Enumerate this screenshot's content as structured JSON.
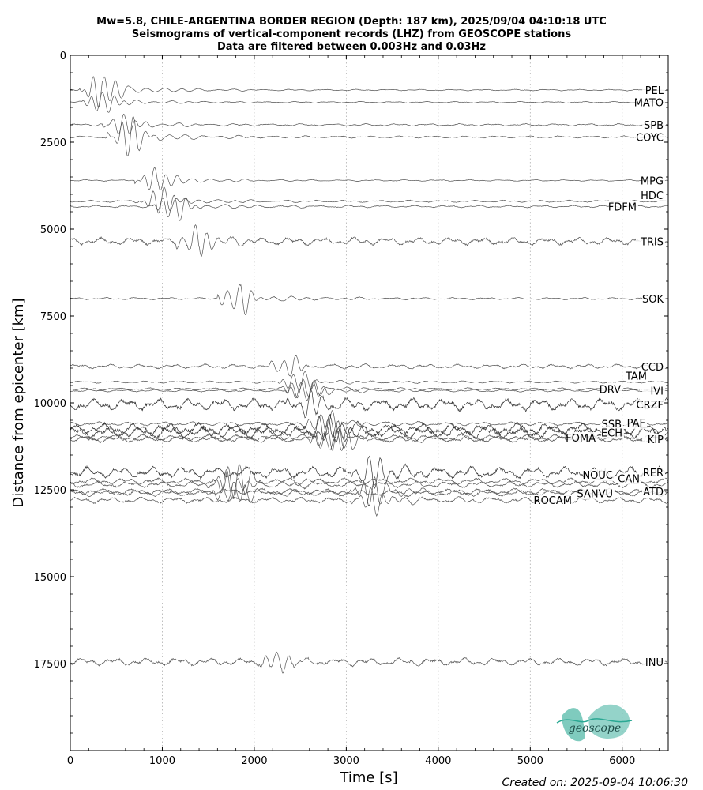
{
  "chart_data": {
    "type": "line",
    "title_lines": [
      "Mw=5.8, CHILE-ARGENTINA BORDER REGION (Depth: 187 km), 2025/09/04 04:10:18 UTC",
      "Seismograms of vertical-component records (LHZ) from GEOSCOPE stations",
      "Data are filtered between 0.003Hz and 0.03Hz"
    ],
    "xlabel": "Time [s]",
    "ylabel": "Distance from epicenter [km]",
    "xlim": [
      0,
      6500
    ],
    "ylim": [
      20000,
      0
    ],
    "xticks": [
      0,
      1000,
      2000,
      3000,
      4000,
      5000,
      6000
    ],
    "yticks": [
      0,
      2500,
      5000,
      7500,
      10000,
      12500,
      15000,
      17500
    ],
    "grid": "vertical dotted",
    "stations": [
      {
        "name": "PEL",
        "distance": 1000,
        "arrival": 350,
        "amp": 500,
        "noise": 20
      },
      {
        "name": "MATO",
        "distance": 1350,
        "arrival": 380,
        "amp": 300,
        "noise": 20
      },
      {
        "name": "SPB",
        "distance": 2000,
        "arrival": 600,
        "amp": 300,
        "noise": 30
      },
      {
        "name": "COYC",
        "distance": 2350,
        "arrival": 650,
        "amp": 500,
        "noise": 30
      },
      {
        "name": "MPG",
        "distance": 3600,
        "arrival": 950,
        "amp": 350,
        "noise": 20
      },
      {
        "name": "HDC",
        "distance": 4200,
        "arrival": 1000,
        "amp": 350,
        "noise": 30
      },
      {
        "name": "FDFM",
        "distance": 4350,
        "arrival": 1150,
        "amp": 350,
        "noise": 30
      },
      {
        "name": "TRIS",
        "distance": 5350,
        "arrival": 1400,
        "amp": 400,
        "noise": 100
      },
      {
        "name": "SOK",
        "distance": 7000,
        "arrival": 1850,
        "amp": 400,
        "noise": 30
      },
      {
        "name": "CCD",
        "distance": 8950,
        "arrival": 2400,
        "amp": 250,
        "noise": 60
      },
      {
        "name": "TAM",
        "distance": 9400,
        "arrival": 2500,
        "amp": 250,
        "noise": 30
      },
      {
        "name": "DRV",
        "distance": 9600,
        "arrival": 2550,
        "amp": 300,
        "noise": 30
      },
      {
        "name": "IVI",
        "distance": 9650,
        "arrival": 2600,
        "amp": 300,
        "noise": 30
      },
      {
        "name": "CRZF",
        "distance": 10050,
        "arrival": 2600,
        "amp": 350,
        "noise": 160
      },
      {
        "name": "SSB",
        "distance": 10600,
        "arrival": 2800,
        "amp": 350,
        "noise": 50
      },
      {
        "name": "PAF",
        "distance": 10750,
        "arrival": 2800,
        "amp": 350,
        "noise": 160
      },
      {
        "name": "ECH",
        "distance": 10850,
        "arrival": 2850,
        "amp": 350,
        "noise": 160
      },
      {
        "name": "FOMA",
        "distance": 11000,
        "arrival": 2850,
        "amp": 400,
        "noise": 80
      },
      {
        "name": "KIP",
        "distance": 11050,
        "arrival": 2900,
        "amp": 400,
        "noise": 80
      },
      {
        "name": "RER",
        "distance": 12000,
        "arrival": 3300,
        "amp": 450,
        "noise": 150
      },
      {
        "name": "NOUC",
        "distance": 12250,
        "arrival": 1800,
        "amp": 450,
        "noise": 80
      },
      {
        "name": "CAN",
        "distance": 12350,
        "arrival": 1750,
        "amp": 400,
        "noise": 80
      },
      {
        "name": "ATD",
        "distance": 12550,
        "arrival": 3300,
        "amp": 400,
        "noise": 80
      },
      {
        "name": "SANVU",
        "distance": 12600,
        "arrival": 1800,
        "amp": 350,
        "noise": 80
      },
      {
        "name": "ROCAM",
        "distance": 12800,
        "arrival": 3300,
        "amp": 350,
        "noise": 80
      },
      {
        "name": "INU",
        "distance": 17450,
        "arrival": 2300,
        "amp": 250,
        "noise": 100
      }
    ]
  },
  "footer": {
    "created": "Created on: 2025-09-04 10:06:30",
    "logo_text": "geoscope"
  },
  "colors": {
    "trace": "#555555",
    "trace_dark": "#333333",
    "grid": "#b0b0b0",
    "logo": "#2aa893"
  }
}
